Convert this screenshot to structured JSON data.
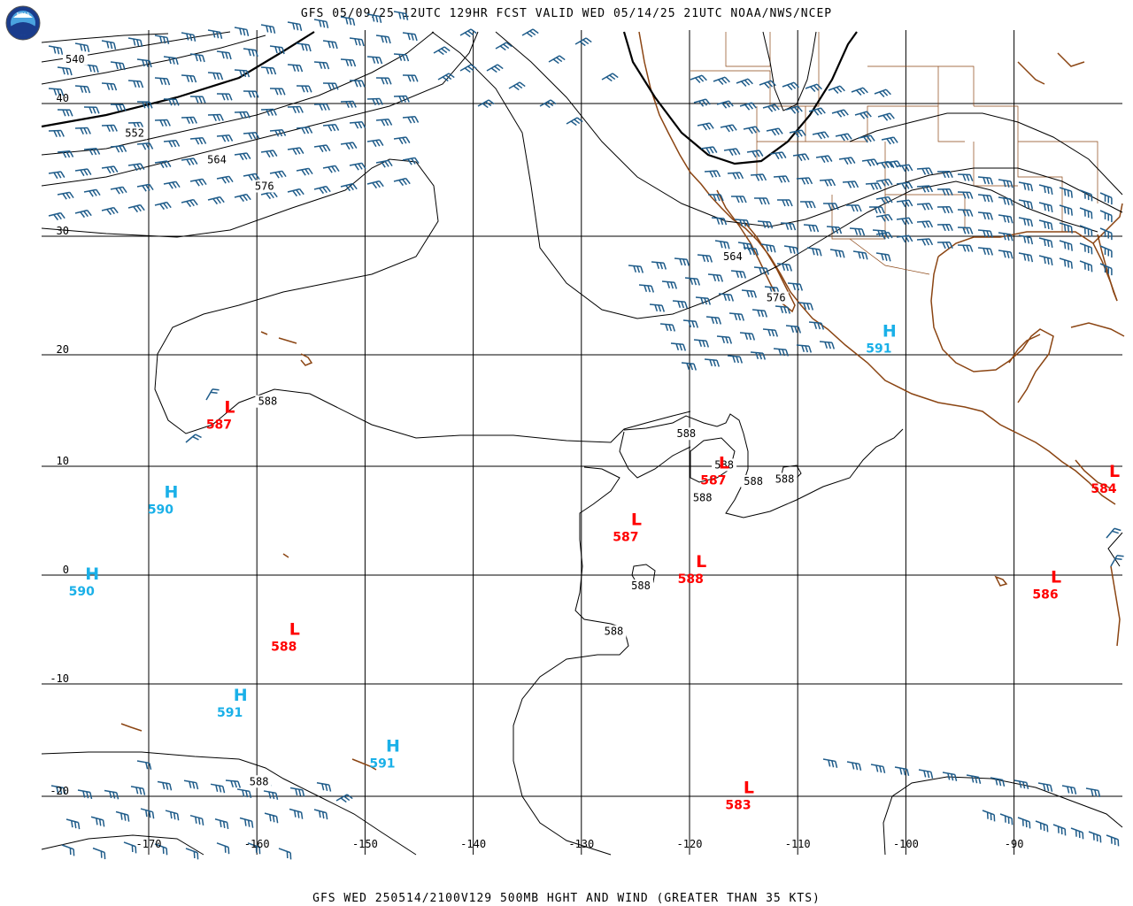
{
  "header": {
    "title": "GFS 05/09/25 12UTC 129HR FCST VALID WED 05/14/25 21UTC NOAA/NWS/NCEP"
  },
  "footer": {
    "title": "GFS WED 250514/2100V129 500MB HGHT AND WIND (GREATER THAN 35 KTS)"
  },
  "logo": {
    "text": "NOAA"
  },
  "map": {
    "lon_labels": [
      "-170",
      "-160",
      "-150",
      "-140",
      "-130",
      "-120",
      "-110",
      "-100",
      "-90"
    ],
    "lat_labels": [
      "40",
      "30",
      "20",
      "10",
      "0",
      "-10",
      "-20"
    ],
    "contour_labels": [
      {
        "text": "540",
        "lon": -176.8,
        "lat": 43.0
      },
      {
        "text": "552",
        "lon": -171.3,
        "lat": 37.5
      },
      {
        "text": "564",
        "lon": -163.7,
        "lat": 35.5
      },
      {
        "text": "576",
        "lon": -159.3,
        "lat": 33.5
      },
      {
        "text": "564",
        "lon": -116.0,
        "lat": 28.0
      },
      {
        "text": "576",
        "lon": -112.0,
        "lat": 24.5
      },
      {
        "text": "588",
        "lon": -159.0,
        "lat": 15.5
      },
      {
        "text": "588",
        "lon": -120.3,
        "lat": 12.6
      },
      {
        "text": "588",
        "lon": -116.8,
        "lat": 9.8
      },
      {
        "text": "588",
        "lon": -114.1,
        "lat": 8.3
      },
      {
        "text": "588",
        "lon": -111.2,
        "lat": 8.5
      },
      {
        "text": "588",
        "lon": -118.8,
        "lat": 6.8
      },
      {
        "text": "588",
        "lon": -124.5,
        "lat": -1.3
      },
      {
        "text": "588",
        "lon": -127.0,
        "lat": -5.5
      },
      {
        "text": "588",
        "lon": -159.8,
        "lat": -19.0
      }
    ],
    "pressure_centers": [
      {
        "type": "L",
        "value": "587",
        "lon": -163.5,
        "lat": 14.0,
        "color": "#ff0000"
      },
      {
        "type": "H",
        "value": "590",
        "lon": -168.9,
        "lat": 6.3,
        "color": "#1ab0e8"
      },
      {
        "type": "H",
        "value": "590",
        "lon": -176.2,
        "lat": -1.2,
        "color": "#1ab0e8"
      },
      {
        "type": "L",
        "value": "588",
        "lon": -157.5,
        "lat": -6.3,
        "color": "#ff0000"
      },
      {
        "type": "H",
        "value": "591",
        "lon": -162.5,
        "lat": -12.3,
        "color": "#1ab0e8"
      },
      {
        "type": "H",
        "value": "591",
        "lon": -148.4,
        "lat": -16.8,
        "color": "#1ab0e8"
      },
      {
        "type": "L",
        "value": "587",
        "lon": -125.9,
        "lat": 3.8,
        "color": "#ff0000"
      },
      {
        "type": "L",
        "value": "588",
        "lon": -119.9,
        "lat": -0.1,
        "color": "#ff0000"
      },
      {
        "type": "L",
        "value": "587",
        "lon": -117.8,
        "lat": 9.0,
        "color": "#ff0000"
      },
      {
        "type": "L",
        "value": "583",
        "lon": -115.5,
        "lat": -20.5,
        "color": "#ff0000"
      },
      {
        "type": "H",
        "value": "591",
        "lon": -102.5,
        "lat": 20.8,
        "color": "#1ab0e8"
      },
      {
        "type": "L",
        "value": "586",
        "lon": -87.1,
        "lat": -1.5,
        "color": "#ff0000"
      },
      {
        "type": "L",
        "value": "584",
        "lon": -81.7,
        "lat": 8.2,
        "color": "#ff0000"
      }
    ]
  },
  "colors": {
    "barb": "#1f5c8a",
    "coast": "#8b4513",
    "contour": "#000000",
    "grid": "#000000",
    "low": "#ff0000",
    "high": "#1ab0e8"
  }
}
